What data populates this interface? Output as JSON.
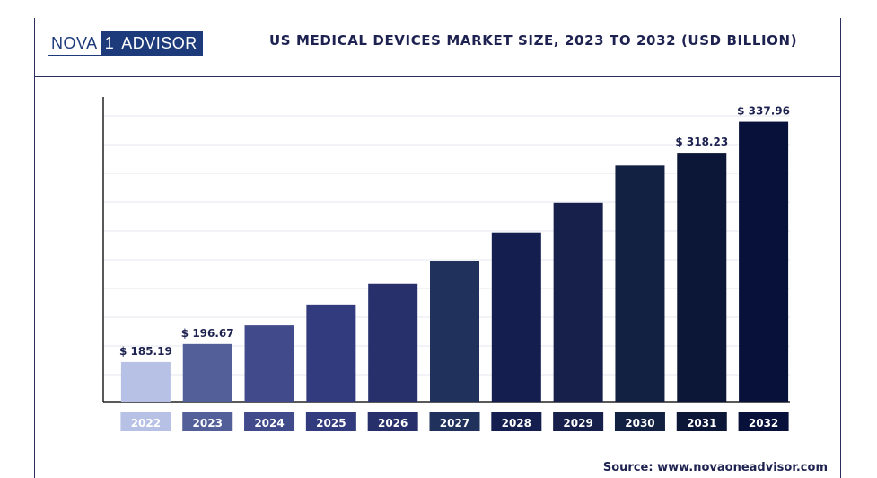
{
  "header": {
    "logo_left": "NOVA",
    "logo_num": "1",
    "logo_right": "ADVISOR",
    "title": "US MEDICAL DEVICES MARKET SIZE, 2023 TO 2032 (USD BILLION)"
  },
  "footer": {
    "source": "Source: www.novaoneadvisor.com"
  },
  "chart_data": {
    "type": "bar",
    "title": "US MEDICAL DEVICES MARKET SIZE, 2023 TO 2032 (USD BILLION)",
    "xlabel": "",
    "ylabel": "",
    "categories": [
      "2022",
      "2023",
      "2024",
      "2025",
      "2026",
      "2027",
      "2028",
      "2029",
      "2030",
      "2031",
      "2032"
    ],
    "values": [
      185.19,
      196.67,
      208.5,
      221.8,
      235.0,
      249.2,
      267.6,
      286.4,
      310.1,
      318.23,
      337.96
    ],
    "data_labels": [
      "$ 185.19",
      "$ 196.67",
      "",
      "",
      "",
      "",
      "",
      "",
      "",
      "$ 318.23",
      "$ 337.96"
    ],
    "ylim": [
      160,
      360
    ],
    "grid": true,
    "colors": [
      "#b7c1e6",
      "#525f98",
      "#414b8c",
      "#323b7d",
      "#28306c",
      "#20325c",
      "#141f50",
      "#16204a",
      "#122042",
      "#0c1636",
      "#07113a"
    ]
  }
}
